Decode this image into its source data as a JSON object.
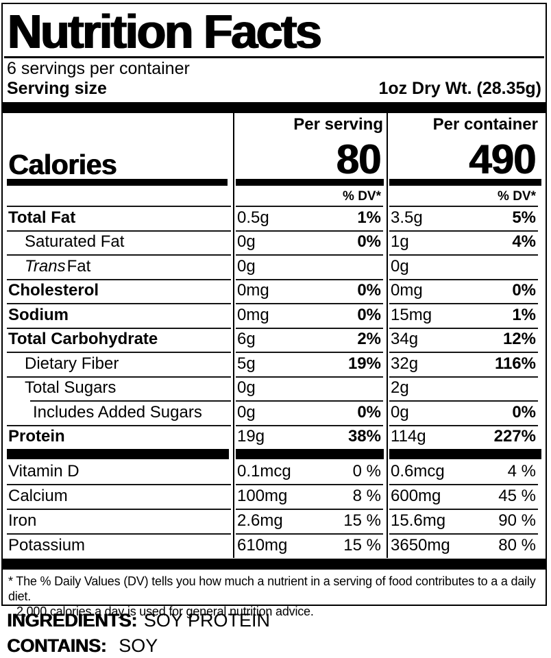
{
  "label": {
    "title": "Nutrition Facts",
    "servings_per_container": "6 servings per container",
    "serving_size_label": "Serving size",
    "serving_size_value": "1oz Dry Wt. (28.35g)",
    "col_serving_header": "Per serving",
    "col_container_header": "Per container",
    "calories_label": "Calories",
    "calories_per_serving": "80",
    "calories_per_container": "490",
    "dv_header": "% DV*",
    "footnote_line1": "* The % Daily Values (DV) tells you how much a nutrient in a serving of food contributes to a a daily diet.",
    "footnote_line2": "2,000 calories a day is used for general nutrition advice.",
    "ingredients_label": "INGREDIENTS:",
    "ingredients_value": "SOY PROTEIN",
    "contains_label": "CONTAINS:",
    "contains_value": "SOY"
  },
  "nutrients": [
    {
      "label": "Total Fat",
      "bold": true,
      "indent": 0,
      "serving_amount": "0.5g",
      "serving_dv": "1%",
      "container_amount": "3.5g",
      "container_dv": "5%"
    },
    {
      "label": "Saturated Fat",
      "bold": false,
      "indent": 1,
      "serving_amount": "0g",
      "serving_dv": "0%",
      "container_amount": "1g",
      "container_dv": "4%"
    },
    {
      "label": "Fat",
      "italic_prefix": "Trans",
      "bold": false,
      "indent": 1,
      "serving_amount": "0g",
      "serving_dv": "",
      "container_amount": "0g",
      "container_dv": ""
    },
    {
      "label": "Cholesterol",
      "bold": true,
      "indent": 0,
      "serving_amount": "0mg",
      "serving_dv": "0%",
      "container_amount": "0mg",
      "container_dv": "0%"
    },
    {
      "label": "Sodium",
      "bold": true,
      "indent": 0,
      "serving_amount": "0mg",
      "serving_dv": "0%",
      "container_amount": "15mg",
      "container_dv": "1%"
    },
    {
      "label": "Total Carbohydrate",
      "bold": true,
      "indent": 0,
      "serving_amount": "6g",
      "serving_dv": "2%",
      "container_amount": "34g",
      "container_dv": "12%"
    },
    {
      "label": "Dietary Fiber",
      "bold": false,
      "indent": 1,
      "serving_amount": "5g",
      "serving_dv": "19%",
      "container_amount": "32g",
      "container_dv": "116%"
    },
    {
      "label": "Total Sugars",
      "bold": false,
      "indent": 1,
      "serving_amount": "0g",
      "serving_dv": "",
      "container_amount": "2g",
      "container_dv": ""
    },
    {
      "label": "Includes Added Sugars",
      "bold": false,
      "indent": 2,
      "indent_separator": true,
      "serving_amount": "0g",
      "serving_dv": "0%",
      "container_amount": "0g",
      "container_dv": "0%"
    },
    {
      "label": "Protein",
      "bold": true,
      "indent": 0,
      "serving_amount": "19g",
      "serving_dv": "38%",
      "container_amount": "114g",
      "container_dv": "227%"
    }
  ],
  "vitamins": [
    {
      "label": "Vitamin D",
      "serving_amount": "0.1mcg",
      "serving_dv": "0 %",
      "container_amount": "0.6mcg",
      "container_dv": "4 %"
    },
    {
      "label": "Calcium",
      "serving_amount": "100mg",
      "serving_dv": "8 %",
      "container_amount": "600mg",
      "container_dv": "45 %"
    },
    {
      "label": "Iron",
      "serving_amount": "2.6mg",
      "serving_dv": "15 %",
      "container_amount": "15.6mg",
      "container_dv": "90 %"
    },
    {
      "label": "Potassium",
      "serving_amount": "610mg",
      "serving_dv": "15 %",
      "container_amount": "3650mg",
      "container_dv": "80 %"
    }
  ]
}
